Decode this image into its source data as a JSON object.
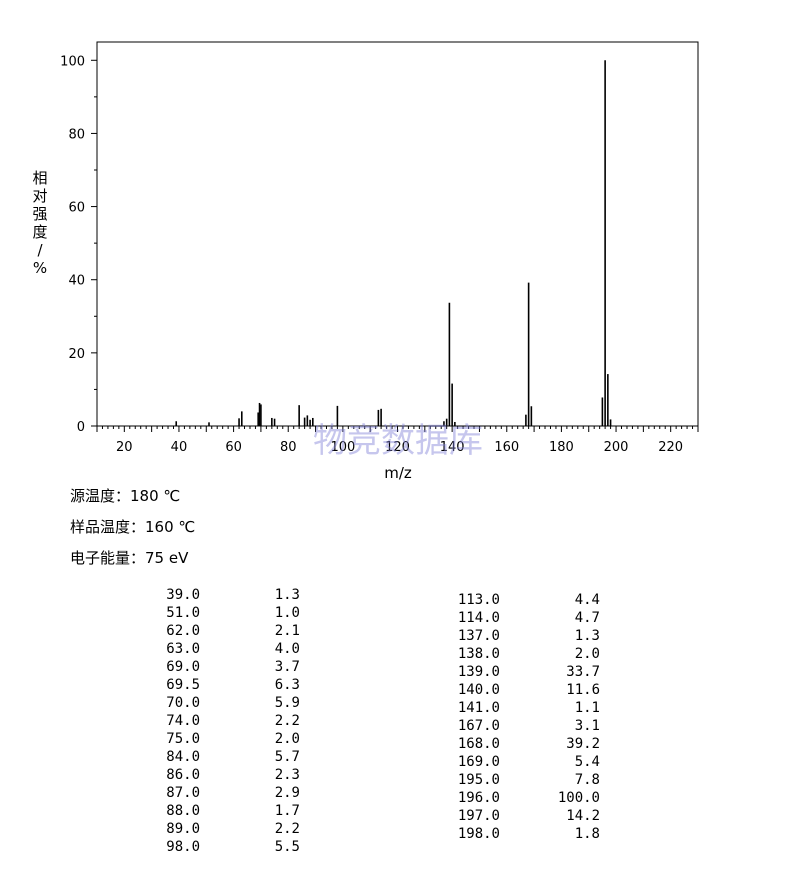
{
  "chart_data": {
    "type": "bar",
    "ylabel": "相对强度/%",
    "xlabel": "m/z",
    "xlim": [
      10,
      230
    ],
    "ylim": [
      0,
      105
    ],
    "x_ticks": [
      20,
      40,
      60,
      80,
      100,
      120,
      140,
      160,
      180,
      200,
      220
    ],
    "y_ticks": [
      0,
      20,
      40,
      60,
      80,
      100
    ],
    "watermark": "物竞数据库",
    "peaks": [
      {
        "mz": 39.0,
        "intensity": 1.3
      },
      {
        "mz": 51.0,
        "intensity": 1.0
      },
      {
        "mz": 62.0,
        "intensity": 2.1
      },
      {
        "mz": 63.0,
        "intensity": 4.0
      },
      {
        "mz": 69.0,
        "intensity": 3.7
      },
      {
        "mz": 69.5,
        "intensity": 6.3
      },
      {
        "mz": 70.0,
        "intensity": 5.9
      },
      {
        "mz": 74.0,
        "intensity": 2.2
      },
      {
        "mz": 75.0,
        "intensity": 2.0
      },
      {
        "mz": 84.0,
        "intensity": 5.7
      },
      {
        "mz": 86.0,
        "intensity": 2.3
      },
      {
        "mz": 87.0,
        "intensity": 2.9
      },
      {
        "mz": 88.0,
        "intensity": 1.7
      },
      {
        "mz": 89.0,
        "intensity": 2.2
      },
      {
        "mz": 98.0,
        "intensity": 5.5
      },
      {
        "mz": 113.0,
        "intensity": 4.4
      },
      {
        "mz": 114.0,
        "intensity": 4.7
      },
      {
        "mz": 137.0,
        "intensity": 1.3
      },
      {
        "mz": 138.0,
        "intensity": 2.0
      },
      {
        "mz": 139.0,
        "intensity": 33.7
      },
      {
        "mz": 140.0,
        "intensity": 11.6
      },
      {
        "mz": 141.0,
        "intensity": 1.1
      },
      {
        "mz": 167.0,
        "intensity": 3.1
      },
      {
        "mz": 168.0,
        "intensity": 39.2
      },
      {
        "mz": 169.0,
        "intensity": 5.4
      },
      {
        "mz": 195.0,
        "intensity": 7.8
      },
      {
        "mz": 196.0,
        "intensity": 100.0
      },
      {
        "mz": 197.0,
        "intensity": 14.2
      },
      {
        "mz": 198.0,
        "intensity": 1.8
      }
    ]
  },
  "conditions": {
    "source_temp": "源温度：180 ℃",
    "sample_temp": "样品温度：160 ℃",
    "electron_energy": "电子能量：75 eV"
  },
  "peak_table": {
    "left": [
      [
        "39.0",
        "1.3"
      ],
      [
        "51.0",
        "1.0"
      ],
      [
        "62.0",
        "2.1"
      ],
      [
        "63.0",
        "4.0"
      ],
      [
        "69.0",
        "3.7"
      ],
      [
        "69.5",
        "6.3"
      ],
      [
        "70.0",
        "5.9"
      ],
      [
        "74.0",
        "2.2"
      ],
      [
        "75.0",
        "2.0"
      ],
      [
        "84.0",
        "5.7"
      ],
      [
        "86.0",
        "2.3"
      ],
      [
        "87.0",
        "2.9"
      ],
      [
        "88.0",
        "1.7"
      ],
      [
        "89.0",
        "2.2"
      ],
      [
        "98.0",
        "5.5"
      ]
    ],
    "right": [
      [
        "113.0",
        "4.4"
      ],
      [
        "114.0",
        "4.7"
      ],
      [
        "137.0",
        "1.3"
      ],
      [
        "138.0",
        "2.0"
      ],
      [
        "139.0",
        "33.7"
      ],
      [
        "140.0",
        "11.6"
      ],
      [
        "141.0",
        "1.1"
      ],
      [
        "167.0",
        "3.1"
      ],
      [
        "168.0",
        "39.2"
      ],
      [
        "169.0",
        "5.4"
      ],
      [
        "195.0",
        "7.8"
      ],
      [
        "196.0",
        "100.0"
      ],
      [
        "197.0",
        "14.2"
      ],
      [
        "198.0",
        "1.8"
      ]
    ]
  }
}
